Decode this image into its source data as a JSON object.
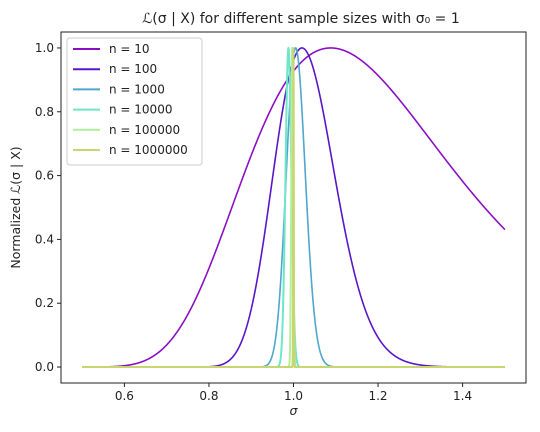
{
  "chart_data": {
    "type": "line",
    "title": "ℒ(σ | X) for different sample sizes with σ₀ = 1",
    "xlabel": "σ",
    "ylabel": "Normalized ℒ(σ | X)",
    "xlim": [
      0.45,
      1.55
    ],
    "ylim": [
      -0.05,
      1.05
    ],
    "x_ticks": [
      0.6,
      0.8,
      1.0,
      1.2,
      1.4
    ],
    "x_tick_labels": [
      "0.6",
      "0.8",
      "1.0",
      "1.2",
      "1.4"
    ],
    "y_ticks": [
      0.0,
      0.2,
      0.4,
      0.6,
      0.8,
      1.0
    ],
    "y_tick_labels": [
      "0.0",
      "0.2",
      "0.4",
      "0.6",
      "0.8",
      "1.0"
    ],
    "grid": false,
    "legend_position": "top-left",
    "series": [
      {
        "name": "n = 10",
        "color": "#8a0fc4",
        "n": 10,
        "peak_sigma": 1.088
      },
      {
        "name": "n = 100",
        "color": "#5a16c8",
        "n": 100,
        "peak_sigma": 1.02
      },
      {
        "name": "n = 1000",
        "color": "#4fa6cf",
        "n": 1000,
        "peak_sigma": 1.005
      },
      {
        "name": "n = 10000",
        "color": "#6fe6c8",
        "n": 10000,
        "peak_sigma": 0.988
      },
      {
        "name": "n = 100000",
        "color": "#b2ee9c",
        "n": 100000,
        "peak_sigma": 0.997
      },
      {
        "name": "n = 1000000",
        "color": "#c9d56e",
        "n": 1000000,
        "peak_sigma": 1.0
      }
    ]
  }
}
